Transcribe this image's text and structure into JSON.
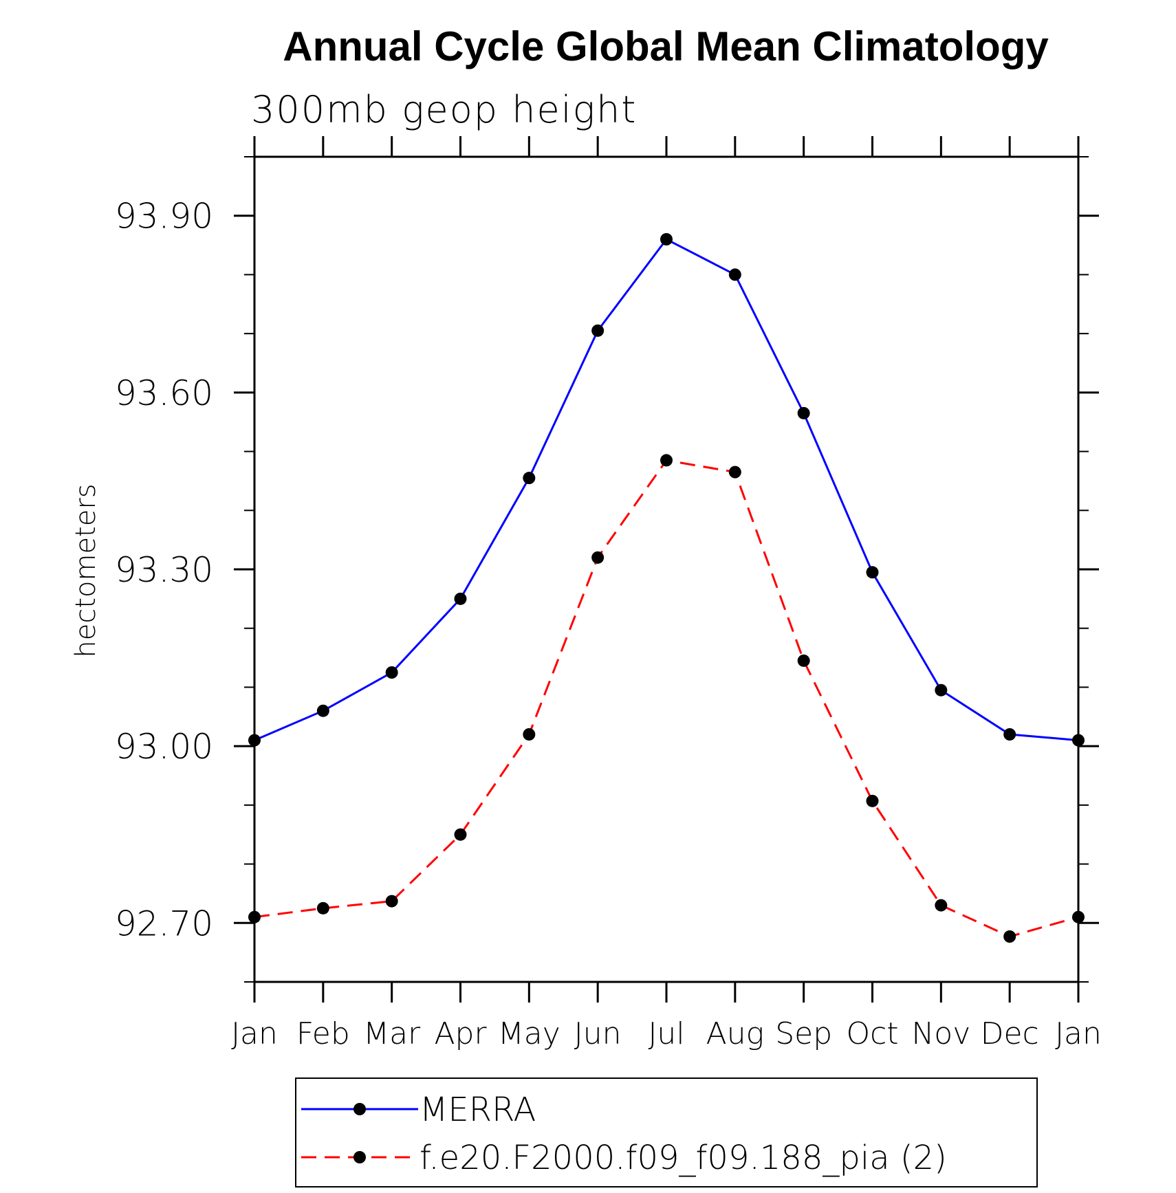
{
  "chart_data": {
    "type": "line",
    "title": "Annual Cycle Global Mean Climatology",
    "subtitle": "300mb  geop  height",
    "xlabel": "",
    "ylabel": "hectometers",
    "categories": [
      "Jan",
      "Feb",
      "Mar",
      "Apr",
      "May",
      "Jun",
      "Jul",
      "Aug",
      "Sep",
      "Oct",
      "Nov",
      "Dec",
      "Jan"
    ],
    "ylim": [
      92.6,
      94.0
    ],
    "yticks": [
      92.7,
      93.0,
      93.3,
      93.6,
      93.9
    ],
    "ytick_labels": [
      "92.70",
      "93.00",
      "93.30",
      "93.60",
      "93.90"
    ],
    "yminor_step": 0.1,
    "legend_position": "bottom",
    "grid": false,
    "series": [
      {
        "name": "MERRA",
        "color": "#0000ff",
        "dash": "solid",
        "marker": "filled-circle",
        "values": [
          93.01,
          93.06,
          93.125,
          93.25,
          93.455,
          93.705,
          93.86,
          93.8,
          93.565,
          93.295,
          93.095,
          93.02,
          93.01
        ]
      },
      {
        "name": "f.e20.F2000.f09_f09.188_pia (2)",
        "color": "#ff0000",
        "dash": "dashed",
        "marker": "filled-circle",
        "values": [
          92.71,
          92.725,
          92.737,
          92.85,
          93.02,
          93.32,
          93.485,
          93.465,
          93.145,
          92.907,
          92.73,
          92.677,
          92.71
        ]
      }
    ]
  }
}
